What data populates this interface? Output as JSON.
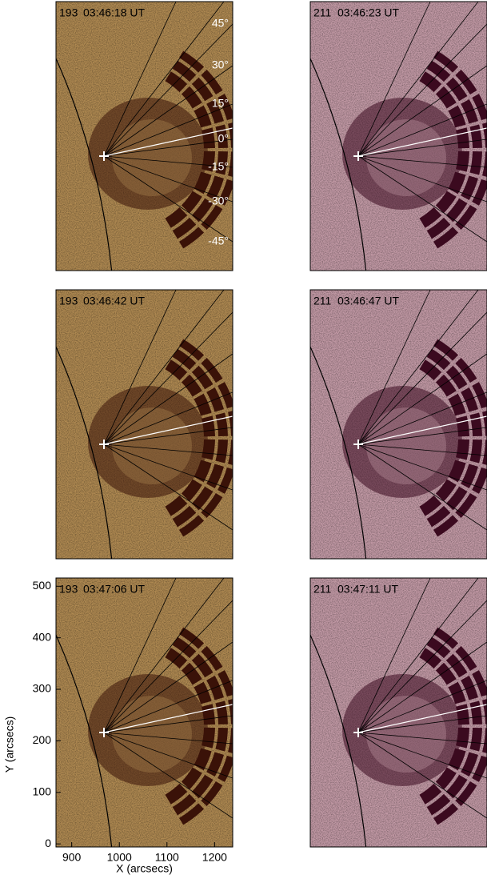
{
  "panels": [
    {
      "band": "193",
      "time": "03:46:18 UT"
    },
    {
      "band": "211",
      "time": "03:46:23 UT"
    },
    {
      "band": "193",
      "time": "03:46:42 UT"
    },
    {
      "band": "211",
      "time": "03:46:47 UT"
    },
    {
      "band": "193",
      "time": "03:47:06 UT"
    },
    {
      "band": "211",
      "time": "03:47:11 UT"
    }
  ],
  "angle_labels": [
    "45°",
    "30°",
    "15°",
    "0°",
    "-15°",
    "-30°",
    "-45°"
  ],
  "axes": {
    "xlabel": "X (arcsecs)",
    "ylabel": "Y (arcsecs)",
    "xlim": [
      867,
      1238
    ],
    "ylim": [
      -6,
      516
    ],
    "xticks": [
      900,
      1000,
      1100,
      1200
    ],
    "yticks": [
      0,
      100,
      200,
      300,
      400,
      500
    ]
  }
}
